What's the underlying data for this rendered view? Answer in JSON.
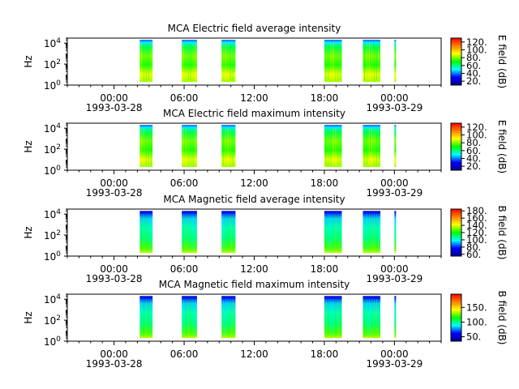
{
  "chart_data": [
    {
      "type": "heatmap",
      "title": "MCA  Electric field average intensity",
      "ylabel": "Hz",
      "yscale": "log",
      "ylim": [
        1,
        30000
      ],
      "yticks": [
        {
          "v": 1,
          "b": "10",
          "e": "0"
        },
        {
          "v": 100,
          "b": "10",
          "e": "2"
        },
        {
          "v": 10000,
          "b": "10",
          "e": "4"
        }
      ],
      "xlim_hours": [
        -4,
        28
      ],
      "xticks": [
        {
          "h": 0,
          "time": "00:00",
          "date": "1993-03-28"
        },
        {
          "h": 6,
          "time": "06:00"
        },
        {
          "h": 12,
          "time": "12:00"
        },
        {
          "h": 18,
          "time": "18:00"
        },
        {
          "h": 24,
          "time": "00:00",
          "date": "1993-03-29"
        }
      ],
      "colorbar": {
        "label": "E field (dB)",
        "range": [
          10,
          130
        ],
        "ticks": [
          "20.",
          "40.",
          "60.",
          "80.",
          "100.",
          "120."
        ],
        "tick_values": [
          20,
          40,
          60,
          80,
          100,
          120
        ]
      },
      "data_intervals_hours": [
        [
          2.2,
          3.3
        ],
        [
          5.8,
          7.1
        ],
        [
          9.2,
          10.4
        ],
        [
          18.0,
          19.5
        ],
        [
          21.3,
          22.8
        ],
        [
          24.0,
          24.1
        ]
      ],
      "color_stops": [
        "#00008b",
        "#0000ff",
        "#00ffff",
        "#00ff00",
        "#ffff00",
        "#ff8000",
        "#ff0000"
      ]
    },
    {
      "type": "heatmap",
      "title": "MCA  Electric field maximum intensity",
      "ylabel": "Hz",
      "yscale": "log",
      "ylim": [
        1,
        30000
      ],
      "yticks": [
        {
          "v": 1,
          "b": "10",
          "e": "0"
        },
        {
          "v": 100,
          "b": "10",
          "e": "2"
        },
        {
          "v": 10000,
          "b": "10",
          "e": "4"
        }
      ],
      "xlim_hours": [
        -4,
        28
      ],
      "xticks": [
        {
          "h": 0,
          "time": "00:00",
          "date": "1993-03-28"
        },
        {
          "h": 6,
          "time": "06:00"
        },
        {
          "h": 12,
          "time": "12:00"
        },
        {
          "h": 18,
          "time": "18:00"
        },
        {
          "h": 24,
          "time": "00:00",
          "date": "1993-03-29"
        }
      ],
      "colorbar": {
        "label": "E field (dB)",
        "range": [
          10,
          130
        ],
        "ticks": [
          "20.",
          "40.",
          "60.",
          "80.",
          "100.",
          "120."
        ],
        "tick_values": [
          20,
          40,
          60,
          80,
          100,
          120
        ]
      },
      "data_intervals_hours": [
        [
          2.2,
          3.3
        ],
        [
          5.8,
          7.1
        ],
        [
          9.2,
          10.4
        ],
        [
          18.0,
          19.5
        ],
        [
          21.3,
          22.8
        ],
        [
          24.0,
          24.1
        ]
      ],
      "color_stops": [
        "#00008b",
        "#0000ff",
        "#00ffff",
        "#00ff00",
        "#ffff00",
        "#ff8000",
        "#ff0000"
      ]
    },
    {
      "type": "heatmap",
      "title": "MCA  Magnetic field average intensity",
      "ylabel": "Hz",
      "yscale": "log",
      "ylim": [
        1,
        30000
      ],
      "yticks": [
        {
          "v": 1,
          "b": "10",
          "e": "0"
        },
        {
          "v": 100,
          "b": "10",
          "e": "2"
        },
        {
          "v": 10000,
          "b": "10",
          "e": "4"
        }
      ],
      "xlim_hours": [
        -4,
        28
      ],
      "xticks": [
        {
          "h": 0,
          "time": "00:00",
          "date": "1993-03-28"
        },
        {
          "h": 6,
          "time": "06:00"
        },
        {
          "h": 12,
          "time": "12:00"
        },
        {
          "h": 18,
          "time": "18:00"
        },
        {
          "h": 24,
          "time": "00:00",
          "date": "1993-03-29"
        }
      ],
      "colorbar": {
        "label": "B field (dB)",
        "range": [
          55,
          185
        ],
        "ticks": [
          "60.",
          "80.",
          "100.",
          "120.",
          "140.",
          "160.",
          "180."
        ],
        "tick_values": [
          60,
          80,
          100,
          120,
          140,
          160,
          180
        ]
      },
      "data_intervals_hours": [
        [
          2.2,
          3.3
        ],
        [
          5.8,
          7.1
        ],
        [
          9.2,
          10.4
        ],
        [
          18.0,
          19.5
        ],
        [
          21.3,
          22.8
        ],
        [
          24.0,
          24.1
        ]
      ],
      "color_stops": [
        "#00008b",
        "#0000ff",
        "#00ffff",
        "#00ff00",
        "#ffff00",
        "#ff8000",
        "#ff0000"
      ]
    },
    {
      "type": "heatmap",
      "title": "MCA  Magnetic field maximum intensity",
      "ylabel": "Hz",
      "yscale": "log",
      "ylim": [
        1,
        30000
      ],
      "yticks": [
        {
          "v": 1,
          "b": "10",
          "e": "0"
        },
        {
          "v": 100,
          "b": "10",
          "e": "2"
        },
        {
          "v": 10000,
          "b": "10",
          "e": "4"
        }
      ],
      "xlim_hours": [
        -4,
        28
      ],
      "xticks": [
        {
          "h": 0,
          "time": "00:00",
          "date": "1993-03-28"
        },
        {
          "h": 6,
          "time": "06:00"
        },
        {
          "h": 12,
          "time": "12:00"
        },
        {
          "h": 18,
          "time": "18:00"
        },
        {
          "h": 24,
          "time": "00:00",
          "date": "1993-03-29"
        }
      ],
      "colorbar": {
        "label": "B field (dB)",
        "range": [
          35,
          195
        ],
        "ticks": [
          "50.",
          "100.",
          "150."
        ],
        "tick_values": [
          50,
          100,
          150
        ]
      },
      "data_intervals_hours": [
        [
          2.2,
          3.3
        ],
        [
          5.8,
          7.1
        ],
        [
          9.2,
          10.4
        ],
        [
          18.0,
          19.5
        ],
        [
          21.3,
          22.8
        ],
        [
          24.0,
          24.1
        ]
      ],
      "color_stops": [
        "#00008b",
        "#0000ff",
        "#00ffff",
        "#00ff00",
        "#ffff00",
        "#ff8000",
        "#ff0000"
      ]
    }
  ]
}
